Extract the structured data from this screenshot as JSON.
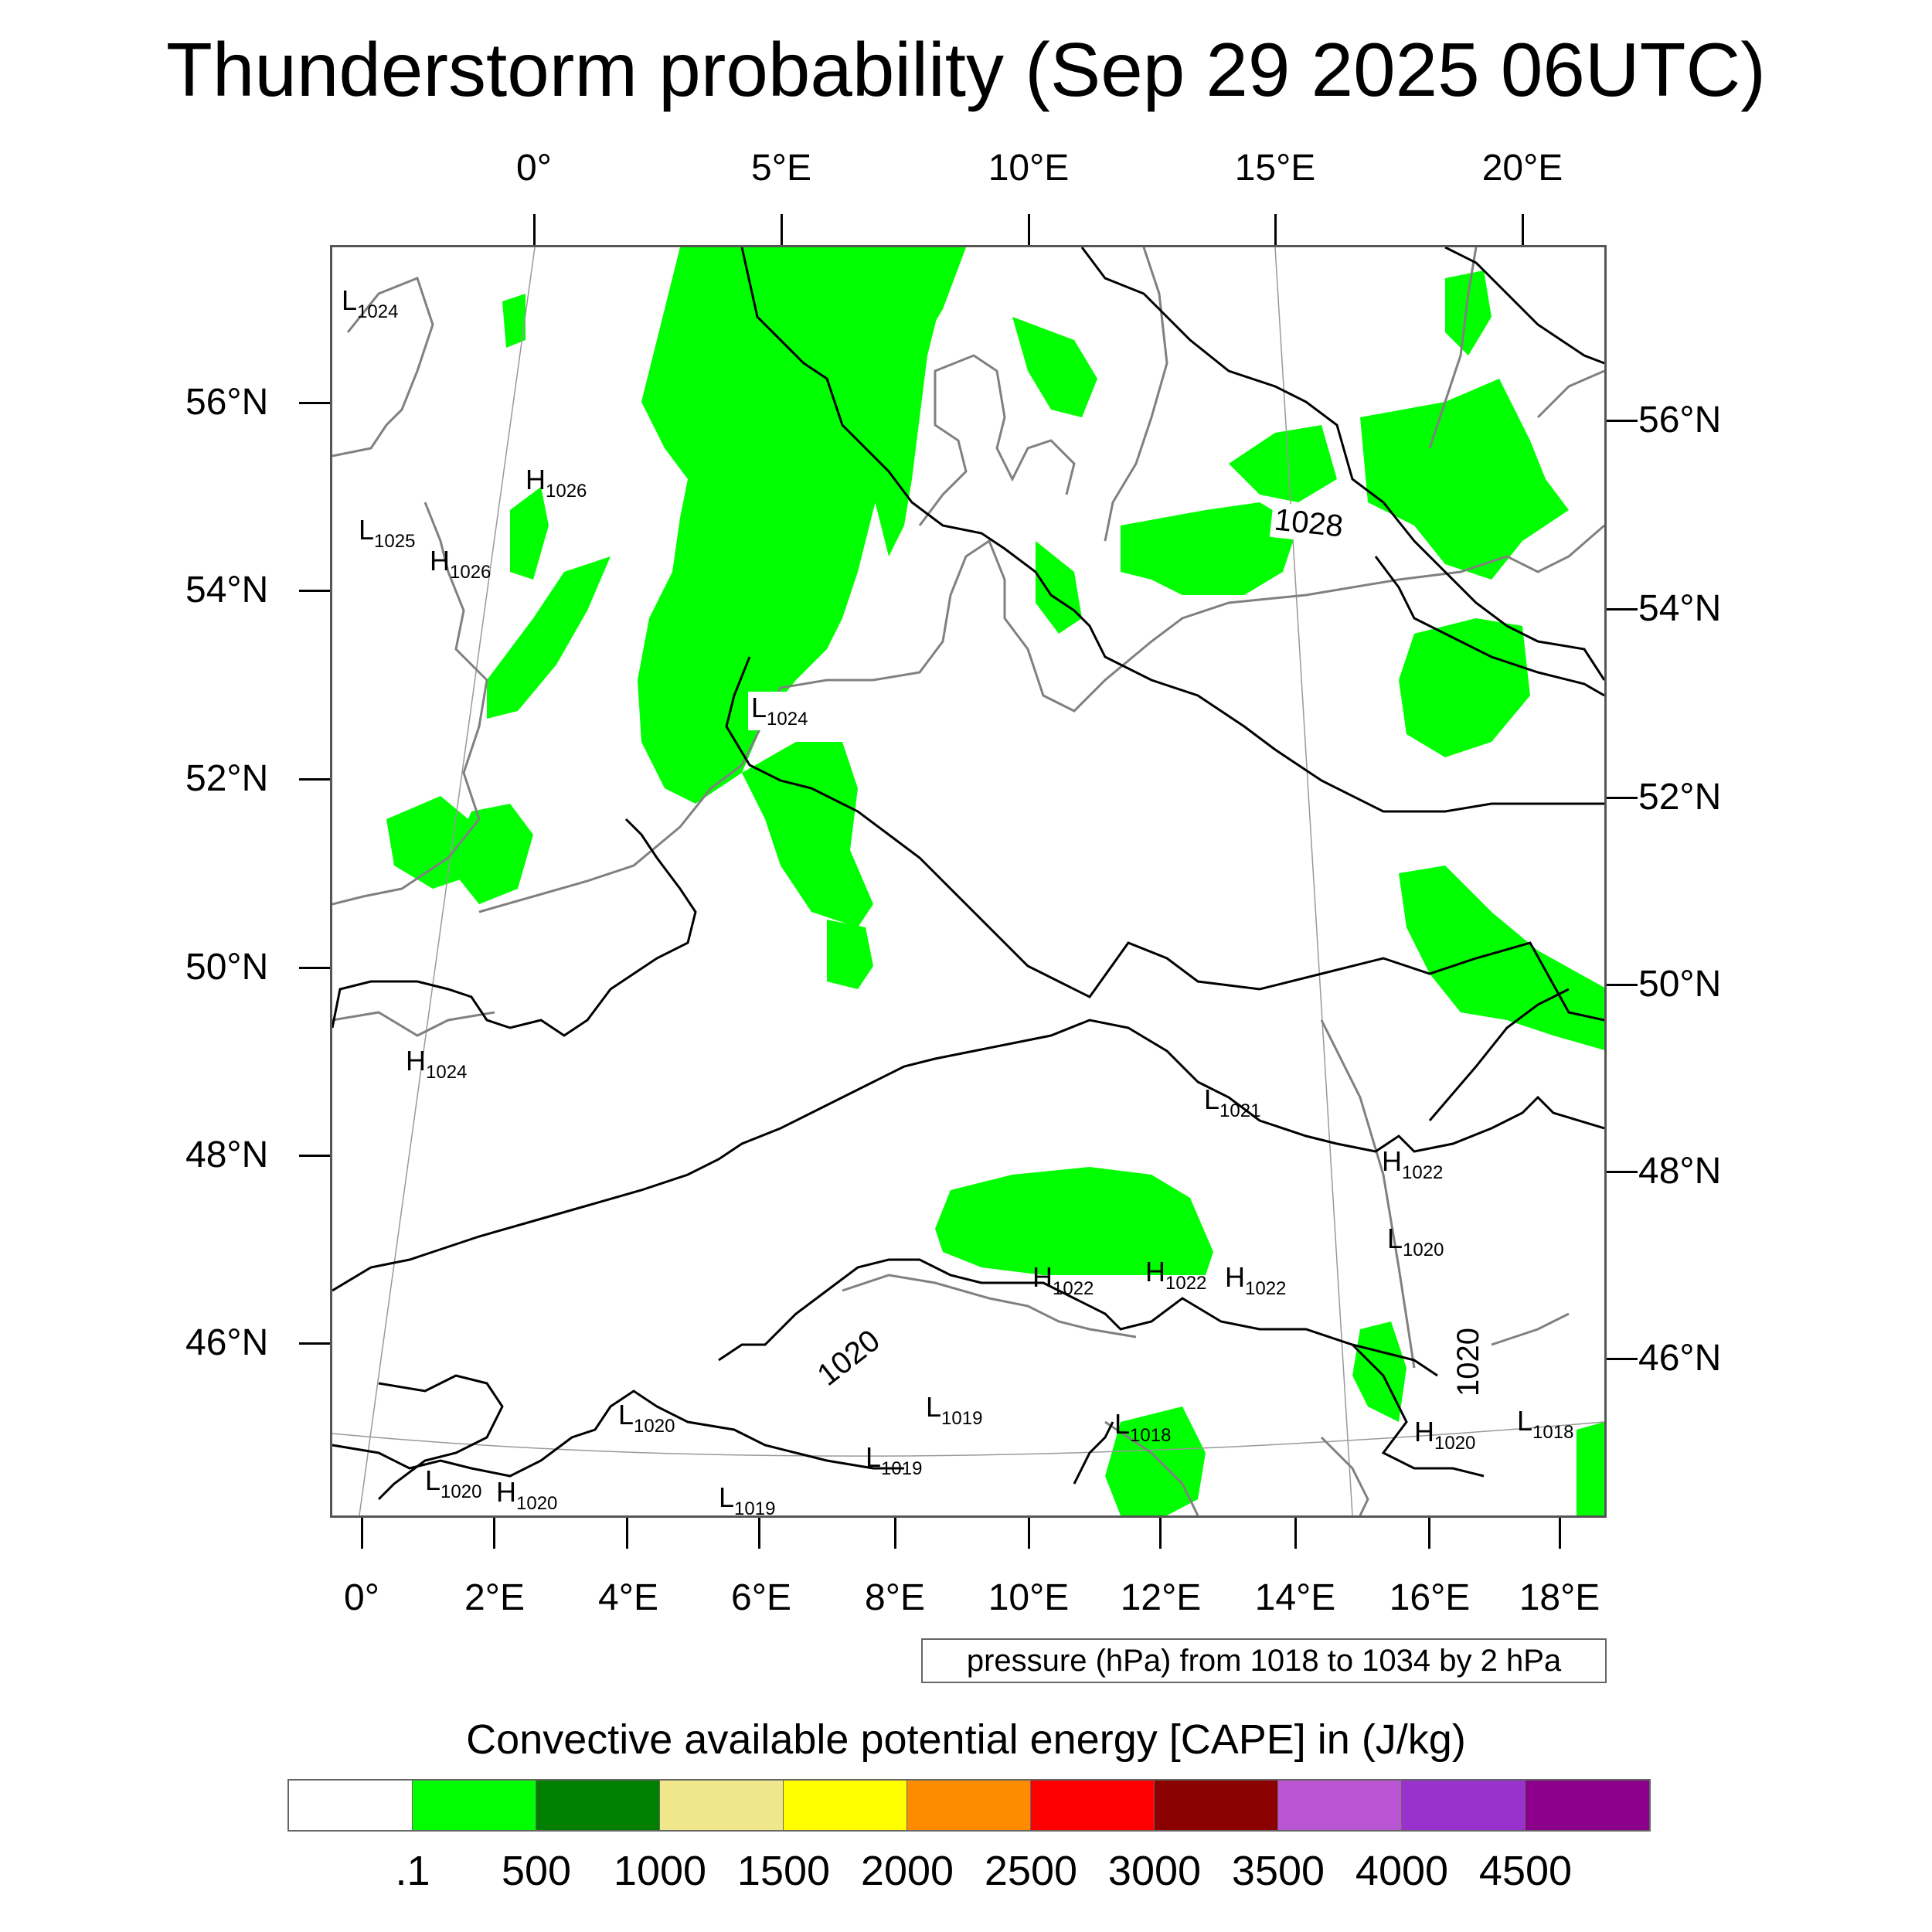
{
  "title": "Thunderstorm probability (Sep 29 2025 06UTC)",
  "map": {
    "lon_top": [
      "0°",
      "5°E",
      "10°E",
      "15°E",
      "20°E"
    ],
    "lon_bottom": [
      "0°",
      "2°E",
      "4°E",
      "6°E",
      "8°E",
      "10°E",
      "12°E",
      "14°E",
      "16°E",
      "18°E"
    ],
    "lat_left": [
      "56°N",
      "54°N",
      "52°N",
      "50°N",
      "48°N",
      "46°N"
    ],
    "lat_right": [
      "56°N",
      "54°N",
      "52°N",
      "50°N",
      "48°N",
      "46°N"
    ],
    "pressure_centers": [
      {
        "type": "L",
        "value": "1024"
      },
      {
        "type": "H",
        "value": "1026"
      },
      {
        "type": "L",
        "value": "1025"
      },
      {
        "type": "H",
        "value": "1026"
      },
      {
        "type": "L",
        "value": "1024"
      },
      {
        "type": "H",
        "value": "1024"
      },
      {
        "type": "L",
        "value": "1021"
      },
      {
        "type": "H",
        "value": "1022"
      },
      {
        "type": "L",
        "value": "1020"
      },
      {
        "type": "H",
        "value": "1022"
      },
      {
        "type": "H",
        "value": "1022"
      },
      {
        "type": "H",
        "value": "1022"
      },
      {
        "type": "L",
        "value": "1019"
      },
      {
        "type": "L",
        "value": "1020"
      },
      {
        "type": "L",
        "value": "1018"
      },
      {
        "type": "H",
        "value": "1020"
      },
      {
        "type": "L",
        "value": "1018"
      },
      {
        "type": "L",
        "value": "1019"
      },
      {
        "type": "L",
        "value": "1020"
      },
      {
        "type": "H",
        "value": "1020"
      },
      {
        "type": "L",
        "value": "1019"
      }
    ],
    "contour_labels": [
      "1028",
      "1020",
      "1020"
    ]
  },
  "pressure_legend": "pressure (hPa) from 1018 to 1034 by 2 hPa",
  "colorbar": {
    "title": "Convective available potential energy [CAPE] in (J/kg)",
    "colors": [
      "#ffffff",
      "#00ff00",
      "#007f00",
      "#f0e68c",
      "#ffff00",
      "#ff8c00",
      "#ff0000",
      "#8b0000",
      "#ba55d3",
      "#9932cc",
      "#8b008b"
    ],
    "labels": [
      ".1",
      "500",
      "1000",
      "1500",
      "2000",
      "2500",
      "3000",
      "3500",
      "4000",
      "4500"
    ]
  }
}
